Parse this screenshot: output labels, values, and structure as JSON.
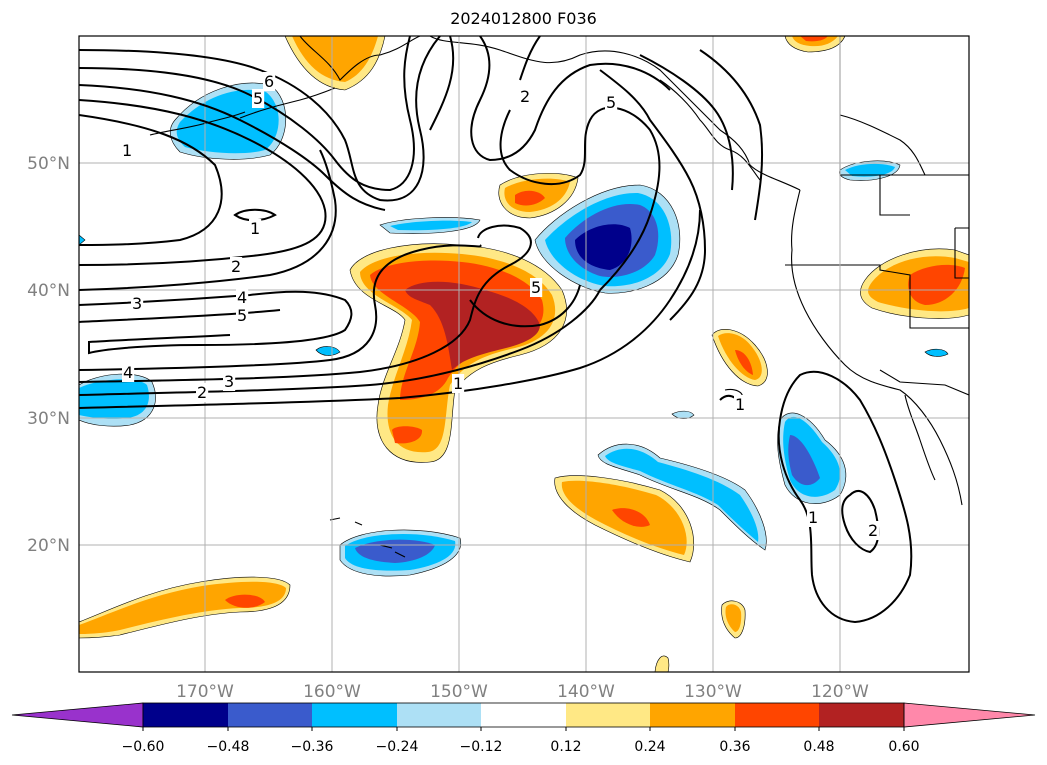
{
  "title": "2024012800 F036",
  "map": {
    "lat_labels": [
      "50°N",
      "40°N",
      "30°N",
      "20°N"
    ],
    "lon_labels": [
      "170°W",
      "160°W",
      "150°W",
      "140°W",
      "130°W",
      "120°W"
    ],
    "contour_labels": [
      "6",
      "5",
      "1",
      "1",
      "2",
      "3",
      "4",
      "5",
      "4",
      "3",
      "2",
      "1",
      "5",
      "2",
      "5",
      "1",
      "1",
      "2"
    ]
  },
  "colorbar": {
    "tick_labels": [
      "−0.60",
      "−0.48",
      "−0.36",
      "−0.24",
      "−0.12",
      "0.12",
      "0.24",
      "0.36",
      "0.48",
      "0.60"
    ],
    "colors": [
      "#9932cc",
      "#00008b",
      "#3a5bcc",
      "#00bfff",
      "#ade0f5",
      "#ffffff",
      "#ffe885",
      "#ffa500",
      "#ff4500",
      "#b22222",
      "#ff88aa"
    ]
  }
}
